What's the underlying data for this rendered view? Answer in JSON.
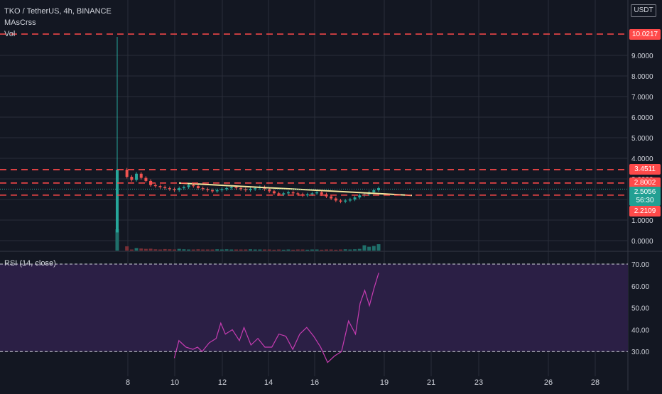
{
  "header": {
    "title": "TKO / TetherUS, 4h, BINANCE",
    "indicator_1": "MAsCrss",
    "indicator_2": "Vol"
  },
  "currency_badge": "USDT",
  "rsi_label": "RSI (14, close)",
  "colors": {
    "background": "#131722",
    "grid": "#2a2e39",
    "up": "#26a69a",
    "down": "#ef5350",
    "level_line": "#ff4a4a",
    "trend_line": "#f5e79e",
    "rsi_line": "#c73cb2",
    "rsi_band": "#2b1f45",
    "axis_text": "#d1d4dc",
    "last_price_badge": "#22a093"
  },
  "price_badges": {
    "high_level": "10.0217",
    "level_2": "3.4511",
    "level_3": "2.8002",
    "last_price": "2.5056",
    "countdown": "56:30",
    "level_4": "2.2109"
  },
  "chart_data": [
    {
      "type": "candlestick",
      "title": "TKO / TetherUS, 4h, BINANCE",
      "x_ticks": [
        "8",
        "10",
        "12",
        "14",
        "16",
        "19",
        "21",
        "23",
        "26",
        "28"
      ],
      "y_ticks": [
        "0.0000",
        "1.0000",
        "2.0000",
        "3.0000",
        "4.0000",
        "5.0000",
        "6.0000",
        "7.0000",
        "8.0000",
        "9.0000"
      ],
      "ylim": [
        -0.5,
        11.0
      ],
      "horizontal_levels": [
        10.0217,
        3.4511,
        2.8002,
        2.2109
      ],
      "last_price": 2.5056,
      "trend_line": {
        "from": [
          10.2,
          2.8
        ],
        "to": [
          20.3,
          2.2
        ]
      },
      "first_candle": {
        "x": 7.5,
        "open": 0.4,
        "high": 10.0,
        "low": 0.4,
        "close": 3.45
      },
      "series_note": "",
      "close_values": [
        3.45,
        3.1,
        2.95,
        3.25,
        3.05,
        2.9,
        2.7,
        2.65,
        2.6,
        2.55,
        2.5,
        2.45,
        2.55,
        2.6,
        2.7,
        2.65,
        2.55,
        2.5,
        2.45,
        2.4,
        2.45,
        2.5,
        2.55,
        2.6,
        2.55,
        2.5,
        2.45,
        2.5,
        2.55,
        2.6,
        2.5,
        2.4,
        2.3,
        2.25,
        2.3,
        2.35,
        2.3,
        2.25,
        2.2,
        2.25,
        2.3,
        2.35,
        2.25,
        2.15,
        2.05,
        1.95,
        1.9,
        1.95,
        2.0,
        2.1,
        2.2,
        2.25,
        2.35,
        2.45,
        2.55
      ]
    },
    {
      "type": "bar",
      "title": "Vol",
      "values": [
        1.0,
        0.2,
        0.05,
        0.12,
        0.1,
        0.08,
        0.09,
        0.06,
        0.05,
        0.07,
        0.06,
        0.05,
        0.08,
        0.06,
        0.05,
        0.05,
        0.06,
        0.05,
        0.05,
        0.05,
        0.06,
        0.05,
        0.06,
        0.05,
        0.05,
        0.05,
        0.05,
        0.06,
        0.05,
        0.05,
        0.05,
        0.05,
        0.04,
        0.05,
        0.04,
        0.05,
        0.04,
        0.05,
        0.05,
        0.04,
        0.05,
        0.05,
        0.04,
        0.05,
        0.05,
        0.04,
        0.05,
        0.06,
        0.05,
        0.06,
        0.08,
        0.25,
        0.18,
        0.22,
        0.3
      ]
    },
    {
      "type": "line",
      "title": "RSI (14, close)",
      "y_ticks": [
        "30.00",
        "40.00",
        "50.00",
        "60.00",
        "70.00"
      ],
      "ylim": [
        20,
        75
      ],
      "upper_band": 70,
      "lower_band": 30,
      "x": [
        10.0,
        10.2,
        10.5,
        10.8,
        11.0,
        11.2,
        11.5,
        11.8,
        12.0,
        12.2,
        12.5,
        12.8,
        13.0,
        13.3,
        13.6,
        13.9,
        14.2,
        14.5,
        14.8,
        15.1,
        15.4,
        15.7,
        16.0,
        16.3,
        16.6,
        16.9,
        17.2,
        17.5,
        17.8,
        18.0,
        18.2,
        18.4,
        18.6,
        18.8
      ],
      "values": [
        27,
        35,
        32,
        31,
        32,
        30,
        34,
        36,
        43,
        38,
        40,
        35,
        41,
        33,
        36,
        32,
        32,
        38,
        37,
        31,
        38,
        41,
        37,
        32,
        25,
        28,
        30,
        44,
        38,
        52,
        58,
        51,
        59,
        66
      ]
    }
  ]
}
